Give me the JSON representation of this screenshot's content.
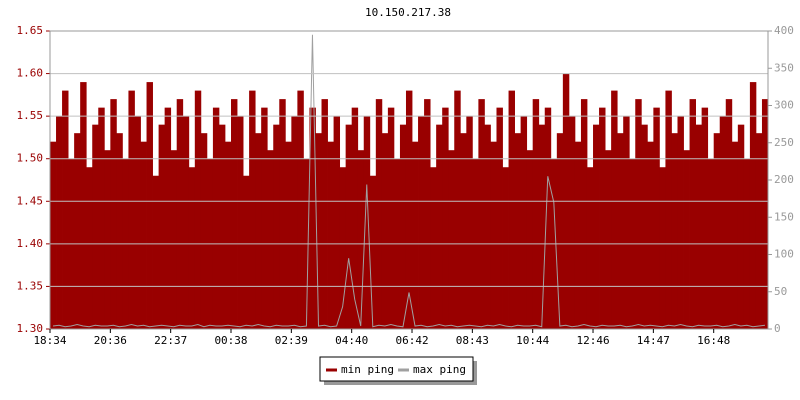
{
  "chart_data": {
    "type": "bar",
    "title": "10.150.217.38",
    "categories": [
      "18:34",
      null,
      null,
      null,
      null,
      null,
      null,
      null,
      null,
      null,
      "20:36",
      null,
      null,
      null,
      null,
      null,
      null,
      null,
      null,
      null,
      "22:37",
      null,
      null,
      null,
      null,
      null,
      null,
      null,
      null,
      null,
      "00:38",
      null,
      null,
      null,
      null,
      null,
      null,
      null,
      null,
      null,
      "02:39",
      null,
      null,
      null,
      null,
      null,
      null,
      null,
      null,
      null,
      "04:40",
      null,
      null,
      null,
      null,
      null,
      null,
      null,
      null,
      null,
      "06:42",
      null,
      null,
      null,
      null,
      null,
      null,
      null,
      null,
      null,
      "08:43",
      null,
      null,
      null,
      null,
      null,
      null,
      null,
      null,
      null,
      "10:44",
      null,
      null,
      null,
      null,
      null,
      null,
      null,
      null,
      null,
      "12:46",
      null,
      null,
      null,
      null,
      null,
      null,
      null,
      null,
      null,
      "14:47",
      null,
      null,
      null,
      null,
      null,
      null,
      null,
      null,
      null,
      "16:48",
      null,
      null,
      null,
      null,
      null,
      null,
      null,
      null
    ],
    "series": [
      {
        "name": "min ping",
        "color": "#990000",
        "values": [
          1.52,
          1.55,
          1.58,
          1.5,
          1.53,
          1.59,
          1.49,
          1.54,
          1.56,
          1.51,
          1.57,
          1.53,
          1.5,
          1.58,
          1.55,
          1.52,
          1.59,
          1.48,
          1.54,
          1.56,
          1.51,
          1.57,
          1.55,
          1.49,
          1.58,
          1.53,
          1.5,
          1.56,
          1.54,
          1.52,
          1.57,
          1.55,
          1.48,
          1.58,
          1.53,
          1.56,
          1.51,
          1.54,
          1.57,
          1.52,
          1.55,
          1.58,
          1.5,
          1.56,
          1.53,
          1.57,
          1.52,
          1.55,
          1.49,
          1.54,
          1.56,
          1.51,
          1.55,
          1.48,
          1.57,
          1.53,
          1.56,
          1.5,
          1.54,
          1.58,
          1.52,
          1.55,
          1.57,
          1.49,
          1.54,
          1.56,
          1.51,
          1.58,
          1.53,
          1.55,
          1.5,
          1.57,
          1.54,
          1.52,
          1.56,
          1.49,
          1.58,
          1.53,
          1.55,
          1.51,
          1.57,
          1.54,
          1.56,
          1.5,
          1.53,
          1.6,
          1.55,
          1.52,
          1.57,
          1.49,
          1.54,
          1.56,
          1.51,
          1.58,
          1.53,
          1.55,
          1.5,
          1.57,
          1.54,
          1.52,
          1.56,
          1.49,
          1.58,
          1.53,
          1.55,
          1.51,
          1.57,
          1.54,
          1.56,
          1.5,
          1.53,
          1.55,
          1.57,
          1.52,
          1.54,
          1.5,
          1.59,
          1.53,
          1.57
        ]
      },
      {
        "name": "max ping",
        "color": "#a0a0a0",
        "axis": "y2",
        "values": [
          4,
          5,
          3,
          4,
          6,
          4,
          3,
          5,
          4,
          4,
          5,
          3,
          4,
          6,
          4,
          5,
          3,
          4,
          5,
          4,
          3,
          5,
          4,
          4,
          6,
          3,
          5,
          4,
          4,
          5,
          4,
          3,
          5,
          4,
          6,
          4,
          3,
          5,
          4,
          4,
          5,
          3,
          4,
          395,
          4,
          5,
          3,
          4,
          30,
          95,
          40,
          4,
          194,
          3,
          5,
          4,
          6,
          4,
          3,
          49,
          4,
          5,
          3,
          4,
          6,
          4,
          5,
          3,
          4,
          5,
          4,
          3,
          5,
          4,
          6,
          4,
          3,
          5,
          4,
          4,
          5,
          3,
          205,
          170,
          4,
          5,
          3,
          4,
          6,
          4,
          3,
          5,
          4,
          4,
          5,
          3,
          4,
          6,
          4,
          5,
          4,
          3,
          5,
          4,
          6,
          4,
          3,
          5,
          4,
          4,
          5,
          3,
          4,
          6,
          4,
          5,
          3,
          4,
          5
        ]
      }
    ],
    "ylim": [
      1.3,
      1.65
    ],
    "yticks": [
      {
        "value": 1.3,
        "label": "1.30"
      },
      1.35,
      {
        "value": 1.4,
        "label": "1.40"
      },
      1.45,
      {
        "value": 1.5,
        "label": "1.50"
      },
      1.55,
      {
        "value": 1.6,
        "label": "1.60"
      },
      1.65
    ],
    "y2lim": [
      0,
      400
    ],
    "y2ticks": [
      0,
      50,
      100,
      150,
      200,
      250,
      300,
      350,
      400
    ],
    "grid": true
  }
}
